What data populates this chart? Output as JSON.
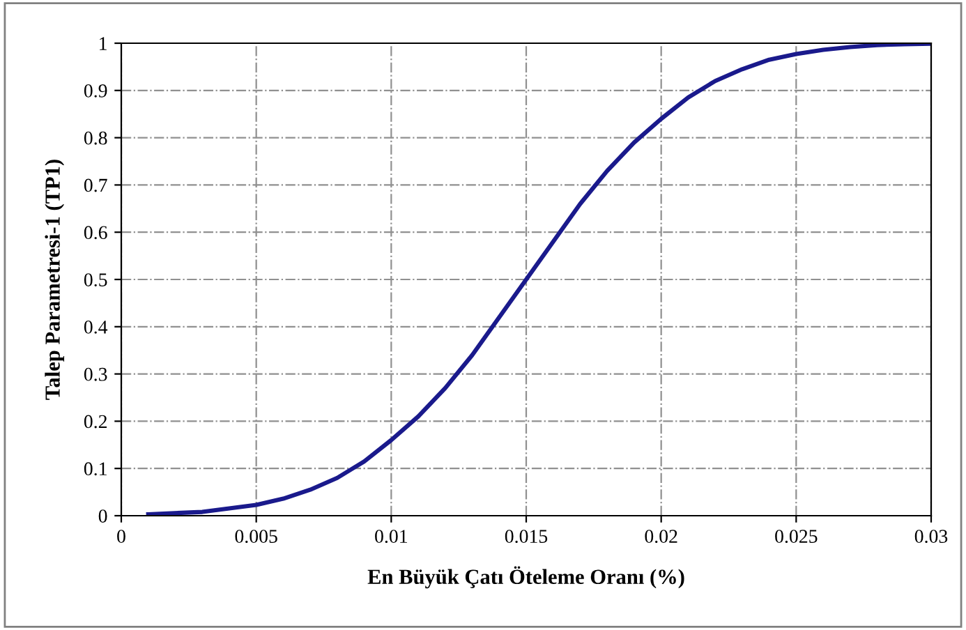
{
  "chart_data": {
    "type": "line",
    "xlabel": "En Büyük Çatı Öteleme Oranı (%)",
    "ylabel": "Talep Parametresi-1 (TP1)",
    "x": [
      0.001,
      0.003,
      0.005,
      0.006,
      0.007,
      0.008,
      0.009,
      0.01,
      0.011,
      0.012,
      0.013,
      0.014,
      0.015,
      0.016,
      0.017,
      0.018,
      0.019,
      0.02,
      0.021,
      0.022,
      0.023,
      0.024,
      0.025,
      0.026,
      0.027,
      0.028,
      0.029,
      0.03
    ],
    "series": [
      {
        "color": "#1a1a8c",
        "values": [
          0.003,
          0.008,
          0.023,
          0.036,
          0.055,
          0.08,
          0.115,
          0.16,
          0.21,
          0.27,
          0.34,
          0.42,
          0.5,
          0.58,
          0.66,
          0.73,
          0.79,
          0.84,
          0.885,
          0.92,
          0.945,
          0.965,
          0.977,
          0.986,
          0.992,
          0.996,
          0.998,
          0.999
        ]
      }
    ],
    "xlim": [
      0,
      0.03
    ],
    "xticks": [
      0,
      0.005,
      0.01,
      0.015,
      0.02,
      0.025,
      0.03
    ],
    "ylim": [
      0,
      1
    ],
    "yticks": [
      0,
      0.1,
      0.2,
      0.3,
      0.4,
      0.5,
      0.6,
      0.7,
      0.8,
      0.9,
      1
    ],
    "grid": true,
    "line_style": "solid",
    "marker": "none",
    "legend": false
  }
}
